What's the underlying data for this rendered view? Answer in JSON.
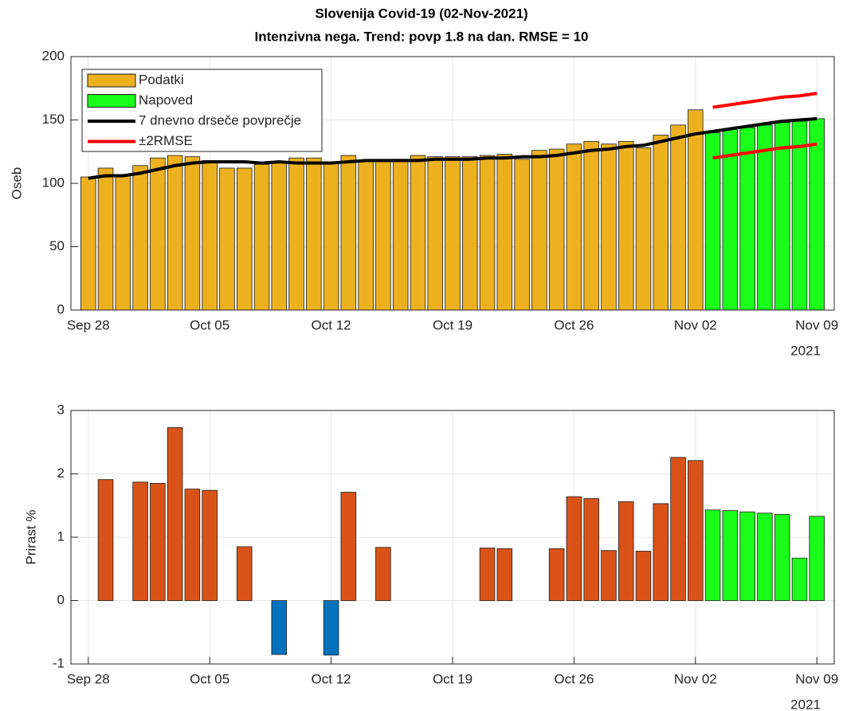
{
  "chart_data": [
    {
      "type": "bar",
      "title": "Slovenija Covid-19 (02-Nov-2021)",
      "subtitle": "Intenzivna nega. Trend: povp 1.8 na dan. RMSE = 10",
      "ylabel": "Oseb",
      "x": [
        "2021-09-28",
        "2021-09-29",
        "2021-09-30",
        "2021-10-01",
        "2021-10-02",
        "2021-10-03",
        "2021-10-04",
        "2021-10-05",
        "2021-10-06",
        "2021-10-07",
        "2021-10-08",
        "2021-10-09",
        "2021-10-10",
        "2021-10-11",
        "2021-10-12",
        "2021-10-13",
        "2021-10-14",
        "2021-10-15",
        "2021-10-16",
        "2021-10-17",
        "2021-10-18",
        "2021-10-19",
        "2021-10-20",
        "2021-10-21",
        "2021-10-22",
        "2021-10-23",
        "2021-10-24",
        "2021-10-25",
        "2021-10-26",
        "2021-10-27",
        "2021-10-28",
        "2021-10-29",
        "2021-10-30",
        "2021-10-31",
        "2021-11-01",
        "2021-11-02",
        "2021-11-03",
        "2021-11-04",
        "2021-11-05",
        "2021-11-06",
        "2021-11-07",
        "2021-11-08",
        "2021-11-09"
      ],
      "xlim": [
        "2021-09-27",
        "2021-11-10"
      ],
      "xticks": [
        {
          "value": "2021-09-28",
          "label": "Sep 28"
        },
        {
          "value": "2021-10-05",
          "label": "Oct 05"
        },
        {
          "value": "2021-10-12",
          "label": "Oct 12"
        },
        {
          "value": "2021-10-19",
          "label": "Oct 19"
        },
        {
          "value": "2021-10-26",
          "label": "Oct 26"
        },
        {
          "value": "2021-11-02",
          "label": "Nov 02"
        },
        {
          "value": "2021-11-09",
          "label": "Nov 09"
        }
      ],
      "x_year_label": "2021",
      "ylim": [
        0,
        200
      ],
      "yticks": [
        0,
        50,
        100,
        150,
        200
      ],
      "grid": true,
      "legend": "upper left",
      "series": [
        {
          "name": "Podatki",
          "type": "bar",
          "color": "#edb120",
          "values": [
            105,
            112,
            107,
            114,
            120,
            122,
            121,
            118,
            112,
            112,
            115,
            117,
            120,
            120,
            116,
            122,
            118,
            118,
            119,
            122,
            121,
            121,
            121,
            122,
            123,
            119,
            126,
            127,
            131,
            133,
            131,
            133,
            128,
            138,
            146,
            158,
            null,
            null,
            null,
            null,
            null,
            null,
            null
          ]
        },
        {
          "name": "Napoved",
          "type": "bar",
          "color": "#1aff1a",
          "values": [
            null,
            null,
            null,
            null,
            null,
            null,
            null,
            null,
            null,
            null,
            null,
            null,
            null,
            null,
            null,
            null,
            null,
            null,
            null,
            null,
            null,
            null,
            null,
            null,
            null,
            null,
            null,
            null,
            null,
            null,
            null,
            null,
            null,
            null,
            null,
            null,
            140,
            143,
            144,
            146,
            148,
            149,
            151
          ]
        },
        {
          "name": "7 dnevno drseče povprečje",
          "type": "line",
          "color": "#000000",
          "values": [
            104,
            106,
            106,
            108,
            111,
            114,
            116,
            117,
            117,
            117,
            116,
            117,
            116,
            116,
            116,
            117,
            118,
            118,
            118,
            118,
            119,
            119,
            119,
            120,
            120,
            121,
            121,
            122,
            124,
            126,
            127,
            129,
            130,
            133,
            136,
            139,
            141,
            143,
            145,
            147,
            149,
            150,
            151
          ]
        },
        {
          "name": "±2RMSE",
          "type": "line",
          "color": "#ff0000",
          "values": [
            null,
            null,
            null,
            null,
            null,
            null,
            null,
            null,
            null,
            null,
            null,
            null,
            null,
            null,
            null,
            null,
            null,
            null,
            null,
            null,
            null,
            null,
            null,
            null,
            null,
            null,
            null,
            null,
            null,
            null,
            null,
            null,
            null,
            null,
            null,
            null,
            160,
            162,
            164,
            166,
            168,
            169,
            171
          ],
          "values_lower": [
            null,
            null,
            null,
            null,
            null,
            null,
            null,
            null,
            null,
            null,
            null,
            null,
            null,
            null,
            null,
            null,
            null,
            null,
            null,
            null,
            null,
            null,
            null,
            null,
            null,
            null,
            null,
            null,
            null,
            null,
            null,
            null,
            null,
            null,
            null,
            null,
            120,
            122,
            124,
            126,
            128,
            129,
            131
          ]
        }
      ]
    },
    {
      "type": "bar",
      "ylabel": "Prirast %",
      "x": [
        "2021-09-28",
        "2021-09-29",
        "2021-09-30",
        "2021-10-01",
        "2021-10-02",
        "2021-10-03",
        "2021-10-04",
        "2021-10-05",
        "2021-10-06",
        "2021-10-07",
        "2021-10-08",
        "2021-10-09",
        "2021-10-10",
        "2021-10-11",
        "2021-10-12",
        "2021-10-13",
        "2021-10-14",
        "2021-10-15",
        "2021-10-16",
        "2021-10-17",
        "2021-10-18",
        "2021-10-19",
        "2021-10-20",
        "2021-10-21",
        "2021-10-22",
        "2021-10-23",
        "2021-10-24",
        "2021-10-25",
        "2021-10-26",
        "2021-10-27",
        "2021-10-28",
        "2021-10-29",
        "2021-10-30",
        "2021-10-31",
        "2021-11-01",
        "2021-11-02",
        "2021-11-03",
        "2021-11-04",
        "2021-11-05",
        "2021-11-06",
        "2021-11-07",
        "2021-11-08",
        "2021-11-09"
      ],
      "xlim": [
        "2021-09-27",
        "2021-11-10"
      ],
      "xticks": [
        {
          "value": "2021-09-28",
          "label": "Sep 28"
        },
        {
          "value": "2021-10-05",
          "label": "Oct 05"
        },
        {
          "value": "2021-10-12",
          "label": "Oct 12"
        },
        {
          "value": "2021-10-19",
          "label": "Oct 19"
        },
        {
          "value": "2021-10-26",
          "label": "Oct 26"
        },
        {
          "value": "2021-11-02",
          "label": "Nov 02"
        },
        {
          "value": "2021-11-09",
          "label": "Nov 09"
        }
      ],
      "x_year_label": "2021",
      "ylim": [
        -1,
        3
      ],
      "yticks": [
        -1,
        0,
        1,
        2,
        3
      ],
      "grid": true,
      "series": [
        {
          "type": "bar",
          "color": "#d95319",
          "negative_color": "#0072bd",
          "values": [
            null,
            1.91,
            0,
            1.87,
            1.85,
            2.73,
            1.76,
            1.74,
            0,
            0.85,
            0,
            -0.85,
            0,
            0,
            -0.86,
            1.71,
            0,
            0.84,
            0,
            0,
            0,
            0,
            0,
            0.83,
            0.82,
            0,
            0,
            0.82,
            1.64,
            1.61,
            0.79,
            1.56,
            0.78,
            1.53,
            2.26,
            2.21,
            null,
            null,
            null,
            null,
            null,
            null,
            null
          ]
        },
        {
          "type": "bar",
          "color": "#1aff1a",
          "values": [
            null,
            null,
            null,
            null,
            null,
            null,
            null,
            null,
            null,
            null,
            null,
            null,
            null,
            null,
            null,
            null,
            null,
            null,
            null,
            null,
            null,
            null,
            null,
            null,
            null,
            null,
            null,
            null,
            null,
            null,
            null,
            null,
            null,
            null,
            null,
            null,
            1.43,
            1.42,
            1.4,
            1.38,
            1.36,
            0.67,
            1.33
          ]
        }
      ]
    }
  ]
}
